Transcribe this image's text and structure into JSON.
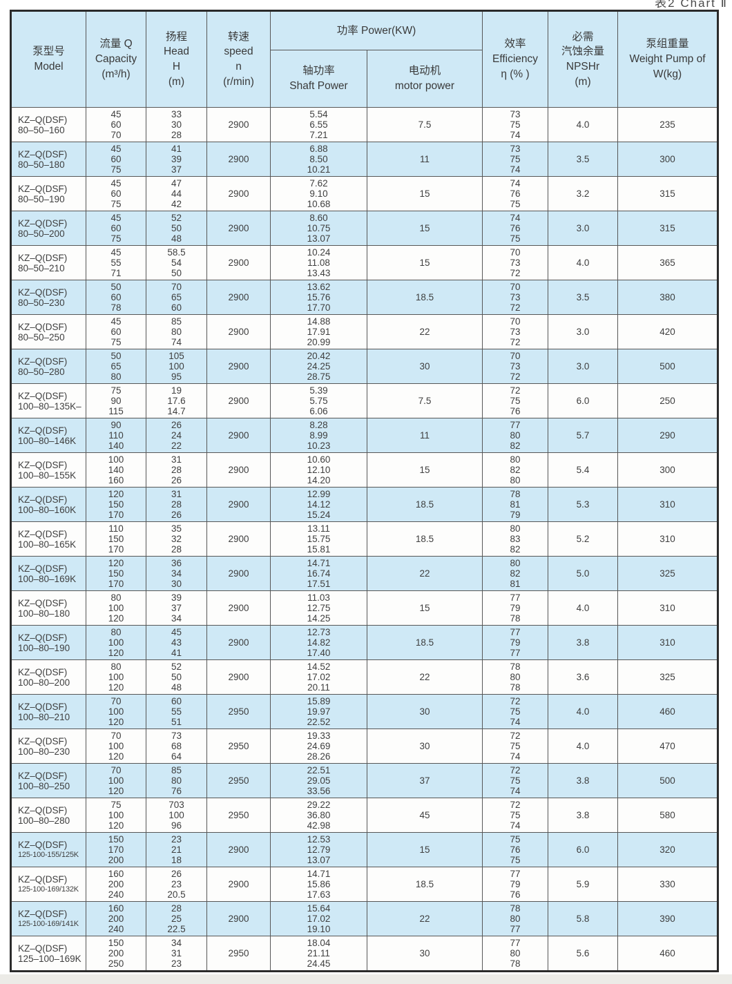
{
  "page": {
    "caption": "表2  Chart Ⅱ"
  },
  "table": {
    "headers": {
      "model": "泵型号\nModel",
      "capacity": "流量 Q\nCapacity\n(m³/h)",
      "head": "扬程\nHead\nH\n(m)",
      "speed": "转速\nspeed\nn\n(r/min)",
      "power_group": "功率 Power(KW)",
      "shaft_power": "轴功率\nShaft Power",
      "motor_power": "电动机\nmotor power",
      "efficiency": "效率\nEfficiency\nη (% )",
      "npshr": "必需\n汽蚀余量\nNPSHr\n(m)",
      "weight": "泵组重量\nWeight Pump of\nW(kg)"
    },
    "rows": [
      {
        "model": [
          "KZ–Q(DSF)",
          "80–50–160"
        ],
        "q": [
          "45",
          "60",
          "70"
        ],
        "h": [
          "33",
          "30",
          "28"
        ],
        "n": "2900",
        "shaft": [
          "5.54",
          "6.55",
          "7.21"
        ],
        "motor": "7.5",
        "eff": [
          "73",
          "75",
          "74"
        ],
        "npshr": "4.0",
        "weight": "235"
      },
      {
        "model": [
          "KZ–Q(DSF)",
          "80–50–180"
        ],
        "q": [
          "45",
          "60",
          "75"
        ],
        "h": [
          "41",
          "39",
          "37"
        ],
        "n": "2900",
        "shaft": [
          "6.88",
          "8.50",
          "10.21"
        ],
        "motor": "11",
        "eff": [
          "73",
          "75",
          "74"
        ],
        "npshr": "3.5",
        "weight": "300"
      },
      {
        "model": [
          "KZ–Q(DSF)",
          "80–50–190"
        ],
        "q": [
          "45",
          "60",
          "75"
        ],
        "h": [
          "47",
          "44",
          "42"
        ],
        "n": "2900",
        "shaft": [
          "7.62",
          "9.10",
          "10.68"
        ],
        "motor": "15",
        "eff": [
          "74",
          "76",
          "75"
        ],
        "npshr": "3.2",
        "weight": "315"
      },
      {
        "model": [
          "KZ–Q(DSF)",
          "80–50–200"
        ],
        "q": [
          "45",
          "60",
          "75"
        ],
        "h": [
          "52",
          "50",
          "48"
        ],
        "n": "2900",
        "shaft": [
          "8.60",
          "10.75",
          "13.07"
        ],
        "motor": "15",
        "eff": [
          "74",
          "76",
          "75"
        ],
        "npshr": "3.0",
        "weight": "315"
      },
      {
        "model": [
          "KZ–Q(DSF)",
          "80–50–210"
        ],
        "q": [
          "45",
          "55",
          "71"
        ],
        "h": [
          "58.5",
          "54",
          "50"
        ],
        "n": "2900",
        "shaft": [
          "10.24",
          "11.08",
          "13.43"
        ],
        "motor": "15",
        "eff": [
          "70",
          "73",
          "72"
        ],
        "npshr": "4.0",
        "weight": "365"
      },
      {
        "model": [
          "KZ–Q(DSF)",
          "80–50–230"
        ],
        "q": [
          "50",
          "60",
          "78"
        ],
        "h": [
          "70",
          "65",
          "60"
        ],
        "n": "2900",
        "shaft": [
          "13.62",
          "15.76",
          "17.70"
        ],
        "motor": "18.5",
        "eff": [
          "70",
          "73",
          "72"
        ],
        "npshr": "3.5",
        "weight": "380"
      },
      {
        "model": [
          "KZ–Q(DSF)",
          "80–50–250"
        ],
        "q": [
          "45",
          "60",
          "75"
        ],
        "h": [
          "85",
          "80",
          "74"
        ],
        "n": "2900",
        "shaft": [
          "14.88",
          "17.91",
          "20.99"
        ],
        "motor": "22",
        "eff": [
          "70",
          "73",
          "72"
        ],
        "npshr": "3.0",
        "weight": "420"
      },
      {
        "model": [
          "KZ–Q(DSF)",
          "80–50–280"
        ],
        "q": [
          "50",
          "65",
          "80"
        ],
        "h": [
          "105",
          "100",
          "95"
        ],
        "n": "2900",
        "shaft": [
          "20.42",
          "24.25",
          "28.75"
        ],
        "motor": "30",
        "eff": [
          "70",
          "73",
          "72"
        ],
        "npshr": "3.0",
        "weight": "500"
      },
      {
        "model": [
          "KZ–Q(DSF)",
          "100–80–135K–"
        ],
        "q": [
          "75",
          "90",
          "115"
        ],
        "h": [
          "19",
          "17.6",
          "14.7"
        ],
        "n": "2900",
        "shaft": [
          "5.39",
          "5.75",
          "6.06"
        ],
        "motor": "7.5",
        "eff": [
          "72",
          "75",
          "76"
        ],
        "npshr": "6.0",
        "weight": "250"
      },
      {
        "model": [
          "KZ–Q(DSF)",
          "100–80–146K"
        ],
        "q": [
          "90",
          "110",
          "140"
        ],
        "h": [
          "26",
          "24",
          "22"
        ],
        "n": "2900",
        "shaft": [
          "8.28",
          "8.99",
          "10.23"
        ],
        "motor": "11",
        "eff": [
          "77",
          "80",
          "82"
        ],
        "npshr": "5.7",
        "weight": "290"
      },
      {
        "model": [
          "KZ–Q(DSF)",
          "100–80–155K"
        ],
        "q": [
          "100",
          "140",
          "160"
        ],
        "h": [
          "31",
          "28",
          "26"
        ],
        "n": "2900",
        "shaft": [
          "10.60",
          "12.10",
          "14.20"
        ],
        "motor": "15",
        "eff": [
          "80",
          "82",
          "80"
        ],
        "npshr": "5.4",
        "weight": "300"
      },
      {
        "model": [
          "KZ–Q(DSF)",
          "100–80–160K"
        ],
        "q": [
          "120",
          "150",
          "170"
        ],
        "h": [
          "31",
          "28",
          "26"
        ],
        "n": "2900",
        "shaft": [
          "12.99",
          "14.12",
          "15.24"
        ],
        "motor": "18.5",
        "eff": [
          "78",
          "81",
          "79"
        ],
        "npshr": "5.3",
        "weight": "310"
      },
      {
        "model": [
          "KZ–Q(DSF)",
          "100–80–165K"
        ],
        "q": [
          "110",
          "150",
          "170"
        ],
        "h": [
          "35",
          "32",
          "28"
        ],
        "n": "2900",
        "shaft": [
          "13.11",
          "15.75",
          "15.81"
        ],
        "motor": "18.5",
        "eff": [
          "80",
          "83",
          "82"
        ],
        "npshr": "5.2",
        "weight": "310"
      },
      {
        "model": [
          "KZ–Q(DSF)",
          "100–80–169K"
        ],
        "q": [
          "120",
          "150",
          "170"
        ],
        "h": [
          "36",
          "34",
          "30"
        ],
        "n": "2900",
        "shaft": [
          "14.71",
          "16.74",
          "17.51"
        ],
        "motor": "22",
        "eff": [
          "80",
          "82",
          "81"
        ],
        "npshr": "5.0",
        "weight": "325"
      },
      {
        "model": [
          "KZ–Q(DSF)",
          "100–80–180"
        ],
        "q": [
          "80",
          "100",
          "120"
        ],
        "h": [
          "39",
          "37",
          "34"
        ],
        "n": "2900",
        "shaft": [
          "11.03",
          "12.75",
          "14.25"
        ],
        "motor": "15",
        "eff": [
          "77",
          "79",
          "78"
        ],
        "npshr": "4.0",
        "weight": "310"
      },
      {
        "model": [
          "KZ–Q(DSF)",
          "100–80–190"
        ],
        "q": [
          "80",
          "100",
          "120"
        ],
        "h": [
          "45",
          "43",
          "41"
        ],
        "n": "2900",
        "shaft": [
          "12.73",
          "14.82",
          "17.40"
        ],
        "motor": "18.5",
        "eff": [
          "77",
          "79",
          "77"
        ],
        "npshr": "3.8",
        "weight": "310"
      },
      {
        "model": [
          "KZ–Q(DSF)",
          "100–80–200"
        ],
        "q": [
          "80",
          "100",
          "120"
        ],
        "h": [
          "52",
          "50",
          "48"
        ],
        "n": "2900",
        "shaft": [
          "14.52",
          "17.02",
          "20.11"
        ],
        "motor": "22",
        "eff": [
          "78",
          "80",
          "78"
        ],
        "npshr": "3.6",
        "weight": "325"
      },
      {
        "model": [
          "KZ–Q(DSF)",
          "100–80–210"
        ],
        "q": [
          "70",
          "100",
          "120"
        ],
        "h": [
          "60",
          "55",
          "51"
        ],
        "n": "2950",
        "shaft": [
          "15.89",
          "19.97",
          "22.52"
        ],
        "motor": "30",
        "eff": [
          "72",
          "75",
          "74"
        ],
        "npshr": "4.0",
        "weight": "460"
      },
      {
        "model": [
          "KZ–Q(DSF)",
          "100–80–230"
        ],
        "q": [
          "70",
          "100",
          "120"
        ],
        "h": [
          "73",
          "68",
          "64"
        ],
        "n": "2950",
        "shaft": [
          "19.33",
          "24.69",
          "28.26"
        ],
        "motor": "30",
        "eff": [
          "72",
          "75",
          "74"
        ],
        "npshr": "4.0",
        "weight": "470"
      },
      {
        "model": [
          "KZ–Q(DSF)",
          "100–80–250"
        ],
        "q": [
          "70",
          "100",
          "120"
        ],
        "h": [
          "85",
          "80",
          "76"
        ],
        "n": "2950",
        "shaft": [
          "22.51",
          "29.05",
          "33.56"
        ],
        "motor": "37",
        "eff": [
          "72",
          "75",
          "74"
        ],
        "npshr": "3.8",
        "weight": "500"
      },
      {
        "model": [
          "KZ–Q(DSF)",
          "100–80–280"
        ],
        "q": [
          "75",
          "100",
          "120"
        ],
        "h": [
          "703",
          "100",
          "96"
        ],
        "n": "2950",
        "shaft": [
          "29.22",
          "36.80",
          "42.98"
        ],
        "motor": "45",
        "eff": [
          "72",
          "75",
          "74"
        ],
        "npshr": "3.8",
        "weight": "580"
      },
      {
        "model": [
          "KZ–Q(DSF)",
          "125-100-155/125K"
        ],
        "q": [
          "150",
          "170",
          "200"
        ],
        "h": [
          "23",
          "21",
          "18"
        ],
        "n": "2900",
        "shaft": [
          "12.53",
          "12.79",
          "13.07"
        ],
        "motor": "15",
        "eff": [
          "75",
          "76",
          "75"
        ],
        "npshr": "6.0",
        "weight": "320"
      },
      {
        "model": [
          "KZ–Q(DSF)",
          "125-100-169/132K"
        ],
        "q": [
          "160",
          "200",
          "240"
        ],
        "h": [
          "26",
          "23",
          "20.5"
        ],
        "n": "2900",
        "shaft": [
          "14.71",
          "15.86",
          "17.63"
        ],
        "motor": "18.5",
        "eff": [
          "77",
          "79",
          "76"
        ],
        "npshr": "5.9",
        "weight": "330"
      },
      {
        "model": [
          "KZ–Q(DSF)",
          "125-100-169/141K"
        ],
        "q": [
          "160",
          "200",
          "240"
        ],
        "h": [
          "28",
          "25",
          "22.5"
        ],
        "n": "2900",
        "shaft": [
          "15.64",
          "17.02",
          "19.10"
        ],
        "motor": "22",
        "eff": [
          "78",
          "80",
          "77"
        ],
        "npshr": "5.8",
        "weight": "390"
      },
      {
        "model": [
          "KZ–Q(DSF)",
          "125–100–169K"
        ],
        "q": [
          "150",
          "200",
          "250"
        ],
        "h": [
          "34",
          "31",
          "23"
        ],
        "n": "2950",
        "shaft": [
          "18.04",
          "21.11",
          "24.45"
        ],
        "motor": "30",
        "eff": [
          "77",
          "80",
          "78"
        ],
        "npshr": "5.6",
        "weight": "460"
      }
    ]
  }
}
